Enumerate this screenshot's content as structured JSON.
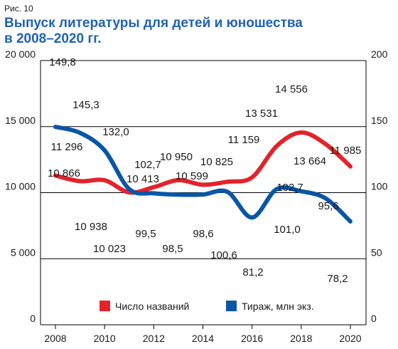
{
  "figure_label": "Рис. 10",
  "chart_data": {
    "type": "line",
    "title": "Выпуск литературы для детей и юношества в 2008–2020 гг.",
    "xlabel": "",
    "x_ticks": [
      "2008",
      "2010",
      "2012",
      "2014",
      "2016",
      "2018",
      "2020"
    ],
    "x_range": [
      2008,
      2020
    ],
    "y_left": {
      "range": [
        0,
        20000
      ],
      "ticks": [
        0,
        5000,
        10000,
        15000,
        20000
      ],
      "tick_labels": [
        "0",
        "5 000",
        "10 000",
        "15 000",
        "20 000"
      ]
    },
    "y_right": {
      "range": [
        0,
        200
      ],
      "ticks": [
        0,
        50,
        100,
        150,
        200
      ],
      "tick_labels": [
        "0",
        "50",
        "100",
        "150",
        "200"
      ]
    },
    "grid": "horizontal",
    "legend_position": "bottom-center",
    "series": [
      {
        "name": "Число названий",
        "axis": "left",
        "color": "#e3232a",
        "x": [
          2008,
          2009,
          2010,
          2011,
          2012,
          2013,
          2014,
          2015,
          2016,
          2017,
          2018,
          2019,
          2020
        ],
        "values": [
          11296,
          10866,
          10938,
          10023,
          10413,
          10950,
          10599,
          10825,
          11159,
          13531,
          14556,
          13664,
          11985
        ],
        "labels": [
          "11 296",
          "10 866",
          "10 938",
          "10 023",
          "10 413",
          "10 950",
          "10 599",
          "10 825",
          "11 159",
          "13 531",
          "14 556",
          "13 664",
          "11 985"
        ]
      },
      {
        "name": "Тираж, млн экз.",
        "axis": "right",
        "color": "#0a56a6",
        "x": [
          2008,
          2009,
          2010,
          2011,
          2012,
          2013,
          2014,
          2015,
          2016,
          2017,
          2018,
          2019,
          2020
        ],
        "values": [
          149.8,
          145.3,
          132.0,
          102.7,
          99.5,
          98.5,
          98.6,
          100.6,
          81.2,
          102.7,
          101.0,
          95.6,
          78.2
        ],
        "labels": [
          "149,8",
          "145,3",
          "132,0",
          "102,7",
          "99,5",
          "98,5",
          "98,6",
          "100,6",
          "81,2",
          "102,7",
          "101,0",
          "95,6",
          "78,2"
        ]
      }
    ]
  }
}
